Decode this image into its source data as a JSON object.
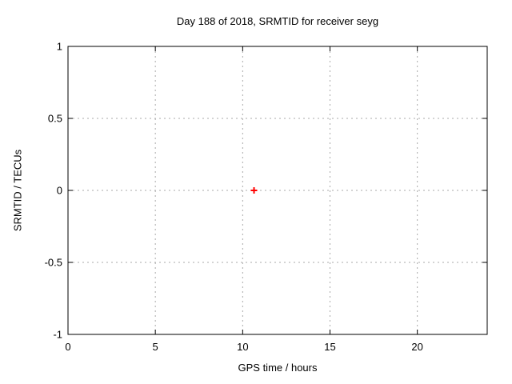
{
  "chart_data": {
    "type": "scatter",
    "title": "Day 188 of 2018, SRMTID for receiver seyg",
    "xlabel": "GPS time / hours",
    "ylabel": "SRMTID / TECUs",
    "xlim": [
      0,
      24
    ],
    "ylim": [
      -1,
      1
    ],
    "xticks": [
      0,
      5,
      10,
      15,
      20
    ],
    "yticks": [
      -1,
      -0.5,
      0,
      0.5,
      1
    ],
    "grid": true,
    "legend": "none",
    "series": [
      {
        "name": "SRMTID",
        "marker": "plus",
        "color": "#ff0000",
        "points": [
          [
            10.65,
            0.0
          ]
        ]
      }
    ]
  },
  "colors": {
    "background": "#ffffff",
    "axis": "#000000",
    "grid": "#aaaaaa",
    "text": "#000000",
    "marker": "#ff0000"
  }
}
